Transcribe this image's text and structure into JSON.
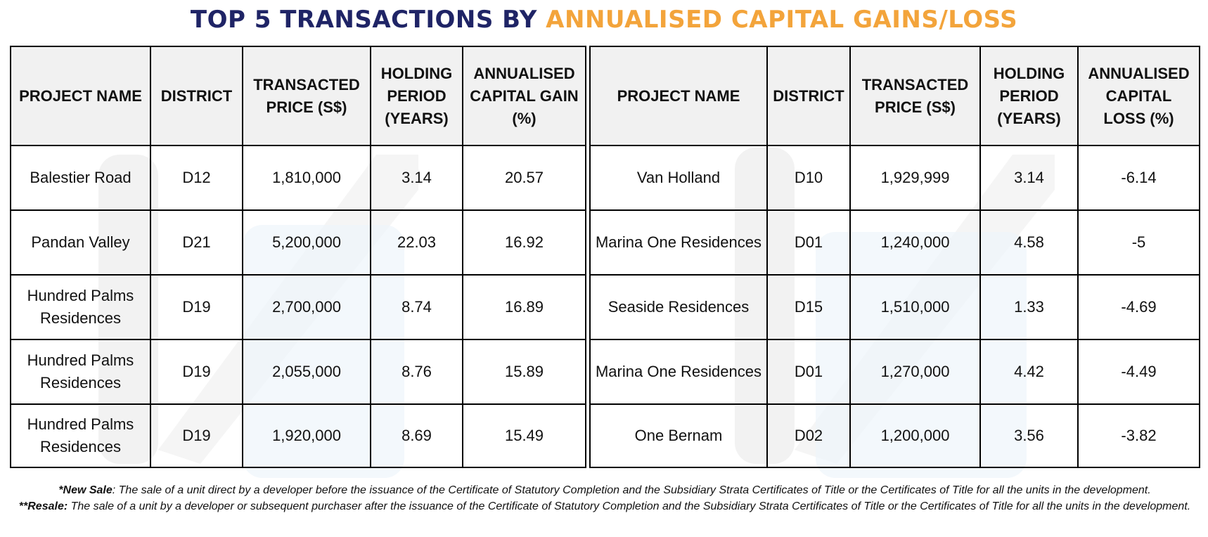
{
  "title": {
    "part1": "TOP 5 TRANSACTIONS BY ",
    "part2": "ANNUALISED CAPITAL GAINS/LOSS",
    "color1": "#1f2466",
    "color2": "#f3a43b"
  },
  "gains_table": {
    "headers": [
      "PROJECT NAME",
      "DISTRICT",
      "TRANSACTED PRICE (S$)",
      "HOLDING PERIOD (YEARS)",
      "ANNUALISED CAPITAL GAIN (%)"
    ],
    "rows": [
      [
        "Balestier Road",
        "D12",
        "1,810,000",
        "3.14",
        "20.57"
      ],
      [
        "Pandan Valley",
        "D21",
        "5,200,000",
        "22.03",
        "16.92"
      ],
      [
        "Hundred Palms Residences",
        "D19",
        "2,700,000",
        "8.74",
        "16.89"
      ],
      [
        "Hundred Palms Residences",
        "D19",
        "2,055,000",
        "8.76",
        "15.89"
      ],
      [
        "Hundred Palms Residences",
        "D19",
        "1,920,000",
        "8.69",
        "15.49"
      ]
    ]
  },
  "loss_table": {
    "headers": [
      "PROJECT NAME",
      "DISTRICT",
      "TRANSACTED PRICE (S$)",
      "HOLDING PERIOD (YEARS)",
      "ANNUALISED CAPITAL LOSS (%)"
    ],
    "rows": [
      [
        "Van Holland",
        "D10",
        "1,929,999",
        "3.14",
        "-6.14"
      ],
      [
        "Marina One Residences",
        "D01",
        "1,240,000",
        "4.58",
        "-5"
      ],
      [
        "Seaside Residences",
        "D15",
        "1,510,000",
        "1.33",
        "-4.69"
      ],
      [
        "Marina One Residences",
        "D01",
        "1,270,000",
        "4.42",
        "-4.49"
      ],
      [
        "One Bernam",
        "D02",
        "1,200,000",
        "3.56",
        "-3.82"
      ]
    ]
  },
  "notes": {
    "new_sale_label": "*New Sale",
    "new_sale_text": ": The sale of a unit direct by a developer before the issuance of the Certificate of Statutory Completion and the Subsidiary Strata Certificates of Title or the Certificates of Title for all the units in the development.",
    "resale_label": "**Resale:",
    "resale_text": " The sale of a unit by a developer or subsequent purchaser after the issuance of the Certificate of Statutory Completion and the Subsidiary Strata Certificates of Title or the Certificates of Title for all the units in the development."
  }
}
